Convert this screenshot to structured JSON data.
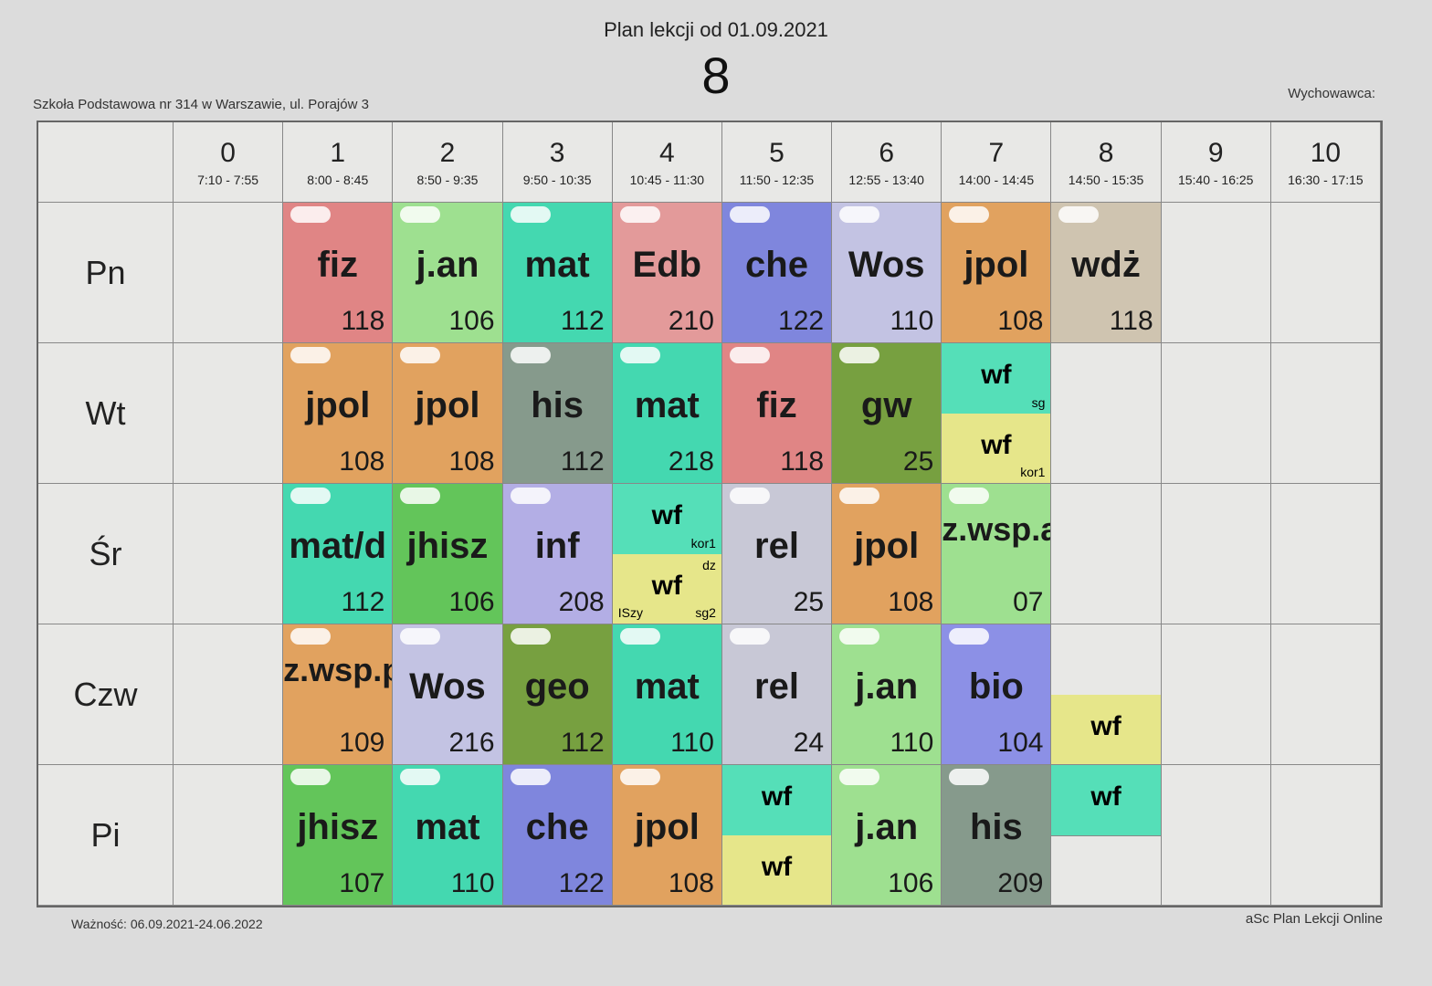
{
  "header": {
    "title": "Plan lekcji od 01.09.2021",
    "class_name": "8",
    "school": "Szkoła Podstawowa nr 314 w Warszawie, ul. Porajów 3",
    "tutor_label": "Wychowawca:"
  },
  "footer": {
    "validity": "Ważność: 06.09.2021-24.06.2022",
    "credit": "aSc Plan Lekcji Online"
  },
  "periods": [
    {
      "num": "0",
      "time": "7:10 - 7:55"
    },
    {
      "num": "1",
      "time": "8:00 - 8:45"
    },
    {
      "num": "2",
      "time": "8:50 - 9:35"
    },
    {
      "num": "3",
      "time": "9:50 - 10:35"
    },
    {
      "num": "4",
      "time": "10:45 - 11:30"
    },
    {
      "num": "5",
      "time": "11:50 - 12:35"
    },
    {
      "num": "6",
      "time": "12:55 - 13:40"
    },
    {
      "num": "7",
      "time": "14:00 - 14:45"
    },
    {
      "num": "8",
      "time": "14:50 - 15:35"
    },
    {
      "num": "9",
      "time": "15:40 - 16:25"
    },
    {
      "num": "10",
      "time": "16:30 - 17:15"
    }
  ],
  "days": [
    "Pn",
    "Wt",
    "Śr",
    "Czw",
    "Pi"
  ],
  "colors": {
    "fiz": "#e08585",
    "jan": "#9ee090",
    "mat": "#44d8b0",
    "edb": "#e39a9a",
    "che": "#7f86dd",
    "wos": "#c3c3e3",
    "jpol": "#e1a25f",
    "wdz": "#cfc4b0",
    "his": "#869a8c",
    "gw": "#77a040",
    "wf_green": "#55dfb8",
    "wf_yellow": "#e6e68a",
    "jhisz": "#63c55a",
    "inf": "#b3aee5",
    "rel": "#c8c8d6",
    "geo": "#77a040",
    "bio": "#8c90e6",
    "zwsp": "#9ee090"
  },
  "timetable": {
    "Pn": [
      {
        "p": 1,
        "subj": "fiz",
        "room": "118",
        "color": "fiz"
      },
      {
        "p": 2,
        "subj": "j.an",
        "room": "106",
        "color": "jan"
      },
      {
        "p": 3,
        "subj": "mat",
        "room": "112",
        "color": "mat"
      },
      {
        "p": 4,
        "subj": "Edb",
        "room": "210",
        "color": "edb"
      },
      {
        "p": 5,
        "subj": "che",
        "room": "122",
        "color": "che"
      },
      {
        "p": 6,
        "subj": "Wos",
        "room": "110",
        "color": "wos"
      },
      {
        "p": 7,
        "subj": "jpol",
        "room": "108",
        "color": "jpol"
      },
      {
        "p": 8,
        "subj": "wdż",
        "room": "118",
        "color": "wdz"
      }
    ],
    "Wt": [
      {
        "p": 1,
        "subj": "jpol",
        "room": "108",
        "color": "jpol"
      },
      {
        "p": 2,
        "subj": "jpol",
        "room": "108",
        "color": "jpol"
      },
      {
        "p": 3,
        "subj": "his",
        "room": "112",
        "color": "his"
      },
      {
        "p": 4,
        "subj": "mat",
        "room": "218",
        "color": "mat"
      },
      {
        "p": 5,
        "subj": "fiz",
        "room": "118",
        "color": "fiz"
      },
      {
        "p": 6,
        "subj": "gw",
        "room": "25",
        "color": "gw"
      },
      {
        "p": 7,
        "split": [
          {
            "subj": "wf",
            "grp": "sg",
            "color": "wf_green"
          },
          {
            "subj": "wf",
            "grp": "kor1",
            "color": "wf_yellow"
          }
        ]
      }
    ],
    "Śr": [
      {
        "p": 1,
        "subj": "mat/d",
        "room": "112",
        "color": "mat"
      },
      {
        "p": 2,
        "subj": "jhisz",
        "room": "106",
        "color": "jhisz"
      },
      {
        "p": 3,
        "subj": "inf",
        "room": "208",
        "color": "inf"
      },
      {
        "p": 4,
        "split": [
          {
            "subj": "wf",
            "grp": "kor1",
            "color": "wf_green"
          },
          {
            "subj": "wf",
            "grp": "sg2",
            "tch": "dz",
            "grp2": "ISzy",
            "color": "wf_yellow"
          }
        ]
      },
      {
        "p": 5,
        "subj": "rel",
        "room": "25",
        "color": "rel"
      },
      {
        "p": 6,
        "subj": "jpol",
        "room": "108",
        "color": "jpol"
      },
      {
        "p": 7,
        "subj": "z.wsp.ang",
        "room": "07",
        "color": "zwsp"
      }
    ],
    "Czw": [
      {
        "p": 1,
        "subj": "z.wsp.pol",
        "room": "109",
        "color": "jpol"
      },
      {
        "p": 2,
        "subj": "Wos",
        "room": "216",
        "color": "wos"
      },
      {
        "p": 3,
        "subj": "geo",
        "room": "112",
        "color": "geo"
      },
      {
        "p": 4,
        "subj": "mat",
        "room": "110",
        "color": "mat"
      },
      {
        "p": 5,
        "subj": "rel",
        "room": "24",
        "color": "rel"
      },
      {
        "p": 6,
        "subj": "j.an",
        "room": "110",
        "color": "jan"
      },
      {
        "p": 7,
        "subj": "bio",
        "room": "104",
        "color": "bio"
      },
      {
        "p": 8,
        "half_only": "bot",
        "subj": "wf",
        "color": "wf_yellow"
      }
    ],
    "Pi": [
      {
        "p": 1,
        "subj": "jhisz",
        "room": "107",
        "color": "jhisz"
      },
      {
        "p": 2,
        "subj": "mat",
        "room": "110",
        "color": "mat"
      },
      {
        "p": 3,
        "subj": "che",
        "room": "122",
        "color": "che"
      },
      {
        "p": 4,
        "subj": "jpol",
        "room": "108",
        "color": "jpol"
      },
      {
        "p": 5,
        "split": [
          {
            "subj": "wf",
            "grp": "",
            "color": "wf_green"
          },
          {
            "subj": "wf",
            "grp": "",
            "color": "wf_yellow"
          }
        ]
      },
      {
        "p": 6,
        "subj": "j.an",
        "room": "106",
        "color": "jan"
      },
      {
        "p": 7,
        "subj": "his",
        "room": "209",
        "color": "his"
      },
      {
        "p": 8,
        "half_only": "top",
        "subj": "wf",
        "color": "wf_green"
      }
    ]
  }
}
